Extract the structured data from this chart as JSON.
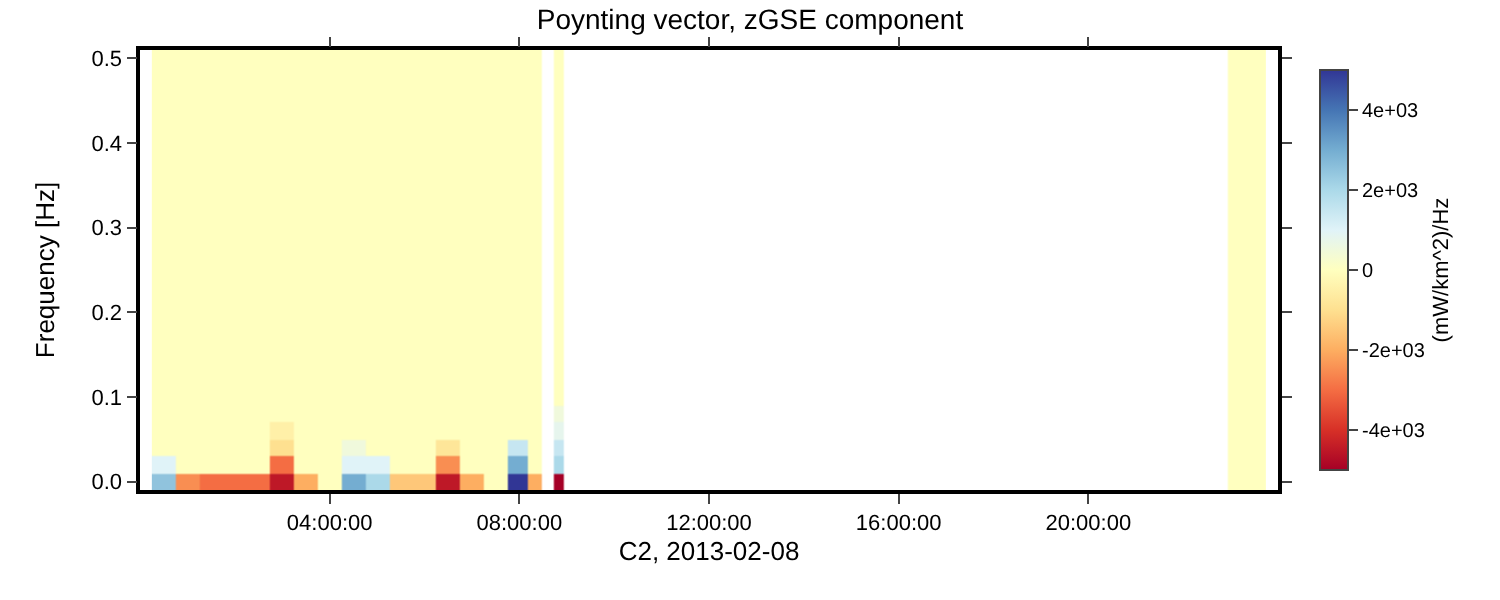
{
  "chart_data": {
    "type": "heatmap",
    "title": "Poynting vector, zGSE component",
    "xlabel": "C2, 2013-02-08",
    "ylabel": "Frequency [Hz]",
    "clabel": "(mW/km^2)/Hz",
    "x": [
      "2013-02-08T00:30",
      "2013-02-08T01:00",
      "2013-02-08T01:30",
      "2013-02-08T02:00",
      "2013-02-08T02:30",
      "2013-02-08T03:00",
      "2013-02-08T03:30",
      "2013-02-08T04:00",
      "2013-02-08T04:30",
      "2013-02-08T05:00",
      "2013-02-08T05:30",
      "2013-02-08T06:00",
      "2013-02-08T06:30",
      "2013-02-08T07:00",
      "2013-02-08T07:30",
      "2013-02-08T08:00",
      "2013-02-08T08:20",
      "2013-02-08T08:36",
      "2013-02-08T08:50",
      "2013-02-08T09:05",
      "2013-02-08T16:00",
      "2013-02-08T22:40",
      "2013-02-08T23:15",
      "2013-02-08T23:35"
    ],
    "y_categories": [
      "0.5",
      null,
      null,
      null,
      null,
      "0.4",
      null,
      null,
      null,
      null,
      "0.3",
      null,
      null,
      null,
      null,
      "0.2",
      null,
      null,
      null,
      null,
      "0.1",
      null,
      null,
      null,
      null,
      "0.0"
    ],
    "cells": [
      [
        0,
        0,
        0,
        0,
        0,
        0,
        0,
        0,
        0,
        0,
        0,
        0,
        0,
        0,
        0,
        0,
        0,
        null,
        0,
        null,
        null,
        null,
        0,
        0
      ],
      [
        0,
        0,
        0,
        0,
        0,
        0,
        0,
        0,
        0,
        0,
        0,
        0,
        0,
        0,
        0,
        0,
        0,
        null,
        0,
        null,
        null,
        null,
        0,
        0
      ],
      [
        0,
        0,
        0,
        0,
        0,
        0,
        0,
        0,
        0,
        0,
        0,
        0,
        0,
        0,
        0,
        0,
        0,
        null,
        0,
        null,
        null,
        null,
        0,
        0
      ],
      [
        0,
        0,
        0,
        0,
        0,
        0,
        0,
        0,
        0,
        0,
        0,
        0,
        0,
        0,
        0,
        0,
        0,
        null,
        0,
        null,
        null,
        null,
        0,
        0
      ],
      [
        0,
        0,
        0,
        0,
        0,
        0,
        0,
        0,
        0,
        0,
        0,
        0,
        0,
        0,
        0,
        0,
        0,
        null,
        0,
        null,
        null,
        null,
        0,
        0
      ],
      [
        0,
        0,
        0,
        0,
        0,
        0,
        0,
        0,
        0,
        0,
        0,
        0,
        0,
        0,
        0,
        0,
        0,
        null,
        0,
        null,
        null,
        null,
        0,
        0
      ],
      [
        0,
        0,
        0,
        0,
        0,
        0,
        0,
        0,
        0,
        0,
        0,
        0,
        0,
        0,
        0,
        0,
        0,
        null,
        0,
        null,
        null,
        null,
        0,
        0
      ],
      [
        0,
        0,
        0,
        0,
        0,
        0,
        0,
        0,
        0,
        0,
        0,
        0,
        0,
        0,
        0,
        0,
        0,
        null,
        0,
        null,
        null,
        null,
        0,
        0
      ],
      [
        0,
        0,
        0,
        0,
        0,
        0,
        0,
        0,
        0,
        0,
        0,
        0,
        0,
        0,
        0,
        0,
        0,
        null,
        0,
        null,
        null,
        null,
        0,
        0
      ],
      [
        0,
        0,
        0,
        0,
        0,
        0,
        0,
        0,
        0,
        0,
        0,
        0,
        0,
        0,
        0,
        0,
        0,
        null,
        0,
        null,
        null,
        null,
        0,
        0
      ],
      [
        0,
        0,
        0,
        0,
        0,
        0,
        0,
        0,
        0,
        0,
        0,
        0,
        0,
        0,
        0,
        0,
        0,
        null,
        0,
        null,
        null,
        null,
        0,
        0
      ],
      [
        0,
        0,
        0,
        0,
        0,
        0,
        0,
        0,
        0,
        0,
        0,
        0,
        0,
        0,
        0,
        0,
        0,
        null,
        0,
        null,
        null,
        null,
        0,
        0
      ],
      [
        0,
        0,
        0,
        0,
        0,
        0,
        0,
        0,
        0,
        0,
        0,
        0,
        0,
        0,
        0,
        0,
        0,
        null,
        0,
        null,
        null,
        null,
        0,
        0
      ],
      [
        0,
        0,
        0,
        0,
        0,
        0,
        0,
        0,
        0,
        0,
        0,
        0,
        0,
        0,
        0,
        0,
        0,
        null,
        0,
        null,
        null,
        null,
        0,
        0
      ],
      [
        0,
        0,
        0,
        0,
        0,
        0,
        0,
        0,
        0,
        0,
        0,
        0,
        0,
        0,
        0,
        0,
        0,
        null,
        0,
        null,
        null,
        null,
        0,
        0
      ],
      [
        0,
        0,
        0,
        0,
        0,
        0,
        0,
        0,
        0,
        0,
        0,
        0,
        0,
        0,
        0,
        0,
        0,
        null,
        0,
        null,
        null,
        null,
        0,
        0
      ],
      [
        0,
        0,
        0,
        0,
        0,
        0,
        0,
        0,
        0,
        0,
        0,
        0,
        0,
        0,
        0,
        0,
        0,
        null,
        0,
        null,
        null,
        null,
        0,
        0
      ],
      [
        0,
        0,
        0,
        0,
        0,
        0,
        0,
        0,
        0,
        0,
        0,
        0,
        0,
        0,
        0,
        0,
        0,
        null,
        0,
        null,
        null,
        null,
        0,
        0
      ],
      [
        0,
        0,
        0,
        0,
        0,
        0,
        0,
        0,
        0,
        0,
        0,
        0,
        0,
        0,
        0,
        0,
        0,
        null,
        0,
        null,
        null,
        null,
        0,
        0
      ],
      [
        0,
        0,
        0,
        0,
        0,
        0,
        0,
        0,
        0,
        0,
        0,
        0,
        0,
        0,
        0,
        0,
        0,
        null,
        0,
        null,
        null,
        null,
        0,
        0
      ],
      [
        0,
        0,
        0,
        0,
        0,
        0,
        0,
        0,
        0,
        0,
        0,
        0,
        0,
        0,
        0,
        0,
        0,
        null,
        0,
        null,
        null,
        null,
        0,
        0
      ],
      [
        0,
        0,
        0,
        0,
        0,
        0,
        0,
        0,
        0,
        0,
        0,
        0,
        0,
        0,
        0,
        0,
        0,
        null,
        500,
        null,
        null,
        null,
        0,
        0
      ],
      [
        0,
        0,
        0,
        0,
        0,
        -500,
        0,
        0,
        0,
        0,
        0,
        0,
        0,
        0,
        0,
        0,
        0,
        null,
        800,
        null,
        null,
        null,
        0,
        0
      ],
      [
        0,
        0,
        0,
        0,
        0,
        -1000,
        0,
        0,
        500,
        0,
        0,
        0,
        -800,
        0,
        0,
        1500,
        0,
        null,
        1500,
        null,
        null,
        null,
        0,
        0
      ],
      [
        1000,
        0,
        0,
        0,
        0,
        -3000,
        0,
        0,
        1000,
        1000,
        0,
        0,
        -2500,
        0,
        0,
        3000,
        0,
        null,
        2000,
        null,
        null,
        null,
        0,
        0
      ],
      [
        2500,
        -2500,
        -3000,
        -3000,
        -3000,
        -4500,
        -2000,
        0,
        3000,
        2000,
        -1500,
        -1500,
        -4500,
        -2000,
        0,
        5000,
        -2000,
        null,
        -5000,
        null,
        null,
        null,
        0,
        0
      ]
    ],
    "clim": [
      -5000,
      5000
    ],
    "cticks": [
      {
        "value": -4000,
        "label": "-4e+03"
      },
      {
        "value": -2000,
        "label": "-2e+03"
      },
      0,
      {
        "value": 2000,
        "label": "2e+03"
      },
      {
        "value": 4000,
        "label": "4e+03"
      }
    ],
    "xlim": [
      "2013-02-08T00:00",
      "2013-02-09T00:00"
    ],
    "xticks": [
      {
        "value": "2013-02-08T04:00",
        "label": "04:00:00"
      },
      {
        "value": "2013-02-08T08:00",
        "label": "08:00:00"
      },
      {
        "value": "2013-02-08T12:00",
        "label": "12:00:00"
      },
      {
        "value": "2013-02-08T16:00",
        "label": "16:00:00"
      },
      {
        "value": "2013-02-08T20:00",
        "label": "20:00:00"
      }
    ]
  }
}
